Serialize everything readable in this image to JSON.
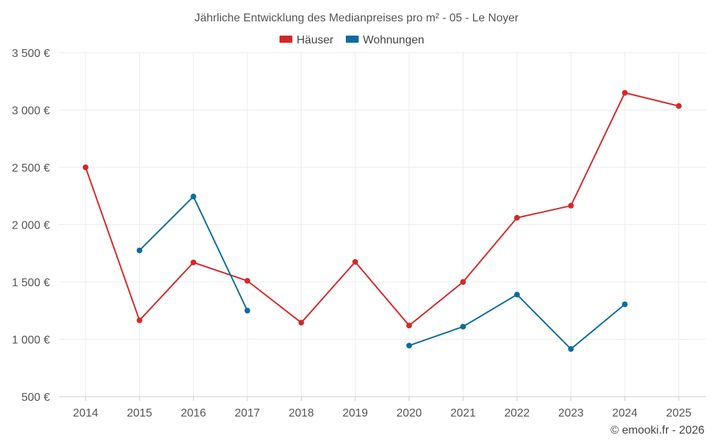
{
  "chart_data": {
    "type": "line",
    "title": "Jährliche Entwicklung des Medianpreises pro m² - 05 - Le Noyer",
    "categories": [
      "2014",
      "2015",
      "2016",
      "2017",
      "2018",
      "2019",
      "2020",
      "2021",
      "2022",
      "2023",
      "2024",
      "2025"
    ],
    "series": [
      {
        "name": "Häuser",
        "color": "#d62728",
        "values": [
          2500,
          1165,
          1670,
          1510,
          1145,
          1675,
          1120,
          1500,
          2060,
          2165,
          3150,
          3035
        ]
      },
      {
        "name": "Wohnungen",
        "color": "#0d6b9e",
        "values": [
          null,
          1775,
          2245,
          1250,
          null,
          null,
          945,
          1110,
          1390,
          915,
          1305,
          null
        ]
      }
    ],
    "ylim": [
      500,
      3500
    ],
    "yticks": [
      500,
      1000,
      1500,
      2000,
      2500,
      3000,
      3500
    ],
    "ytick_labels": [
      "500 €",
      "1 000 €",
      "1 500 €",
      "2 000 €",
      "2 500 €",
      "3 000 €",
      "3 500 €"
    ],
    "xlabel": "",
    "ylabel": "",
    "grid": true,
    "legend_position": "top-center"
  },
  "credit": "© emooki.fr - 2026"
}
